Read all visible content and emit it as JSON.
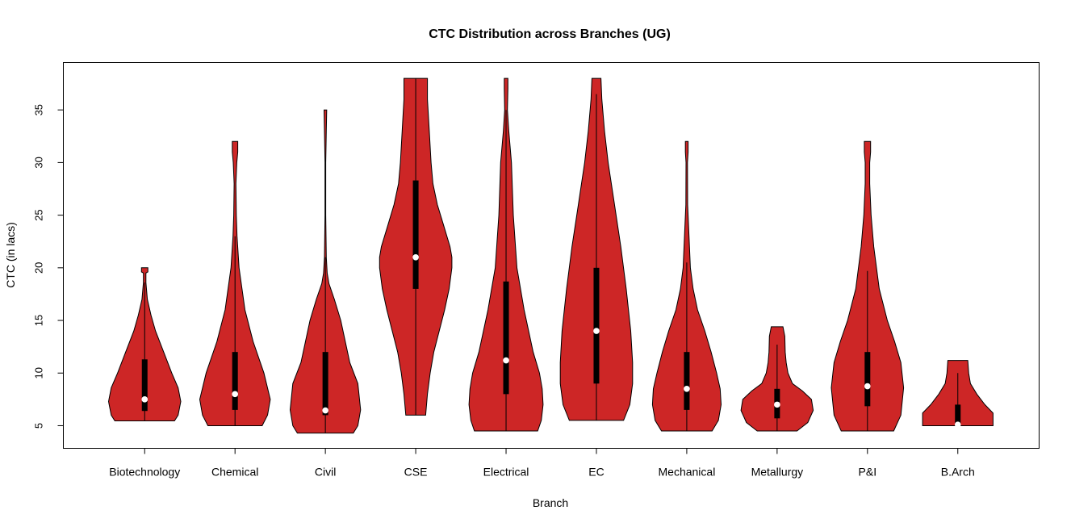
{
  "chart_data": {
    "type": "violin",
    "title": "CTC Distribution across Branches (UG)",
    "xlabel": "Branch",
    "ylabel": "CTC (in lacs)",
    "categories": [
      "Biotechnology",
      "Chemical",
      "Civil",
      "CSE",
      "Electrical",
      "EC",
      "Mechanical",
      "Metallurgy",
      "P&I",
      "B.Arch"
    ],
    "yticks": [
      5,
      10,
      15,
      20,
      25,
      30,
      35
    ],
    "ylim": [
      2.85,
      39.5
    ],
    "xlim": [
      0.1,
      10.9
    ],
    "grid": false,
    "fill_color": "#CD2626",
    "box_color": "#000000",
    "median_color": "#FFFFFF",
    "violins": [
      {
        "min": 5.46,
        "max": 20,
        "q1": 6.4,
        "median": 7.5,
        "q3": 11.3,
        "whisker_low": 5.46,
        "whisker_high": 18.6,
        "density": [
          [
            5.46,
            0.33
          ],
          [
            6,
            0.37
          ],
          [
            7.3,
            0.4
          ],
          [
            8.6,
            0.37
          ],
          [
            10,
            0.3
          ],
          [
            12,
            0.21
          ],
          [
            14,
            0.12
          ],
          [
            15.5,
            0.07
          ],
          [
            17,
            0.03
          ],
          [
            18.6,
            0.014
          ],
          [
            19.5,
            0.014
          ],
          [
            19.6,
            0.035
          ],
          [
            20,
            0.035
          ]
        ]
      },
      {
        "min": 5,
        "max": 32,
        "q1": 6.5,
        "median": 8,
        "q3": 12,
        "whisker_low": 5,
        "whisker_high": 23,
        "density": [
          [
            5,
            0.3
          ],
          [
            6,
            0.36
          ],
          [
            7.5,
            0.39
          ],
          [
            10,
            0.32
          ],
          [
            13,
            0.2
          ],
          [
            16,
            0.11
          ],
          [
            20,
            0.045
          ],
          [
            23,
            0.022
          ],
          [
            25,
            0.014
          ],
          [
            28,
            0.01
          ],
          [
            30,
            0.02
          ],
          [
            31,
            0.03
          ],
          [
            32,
            0.03
          ]
        ]
      },
      {
        "min": 4.3,
        "max": 35,
        "q1": 6.0,
        "median": 6.45,
        "q3": 12,
        "whisker_low": 4.3,
        "whisker_high": 21,
        "density": [
          [
            4.3,
            0.31
          ],
          [
            5,
            0.36
          ],
          [
            6.5,
            0.39
          ],
          [
            9,
            0.36
          ],
          [
            11,
            0.27
          ],
          [
            13,
            0.22
          ],
          [
            15,
            0.17
          ],
          [
            17,
            0.1
          ],
          [
            18.5,
            0.04
          ],
          [
            19.5,
            0.02
          ],
          [
            21,
            0.01
          ],
          [
            25,
            0.004
          ],
          [
            30,
            0.004
          ],
          [
            33,
            0.01
          ],
          [
            35,
            0.015
          ]
        ]
      },
      {
        "min": 6,
        "max": 38,
        "q1": 18,
        "median": 21,
        "q3": 28.3,
        "whisker_low": 6,
        "whisker_high": 38,
        "density": [
          [
            6,
            0.11
          ],
          [
            8,
            0.13
          ],
          [
            10,
            0.16
          ],
          [
            12,
            0.2
          ],
          [
            14,
            0.26
          ],
          [
            16,
            0.32
          ],
          [
            18,
            0.37
          ],
          [
            20,
            0.4
          ],
          [
            21,
            0.4
          ],
          [
            22,
            0.38
          ],
          [
            24,
            0.31
          ],
          [
            26,
            0.24
          ],
          [
            28,
            0.19
          ],
          [
            30,
            0.17
          ],
          [
            33,
            0.15
          ],
          [
            36,
            0.13
          ],
          [
            38,
            0.13
          ]
        ]
      },
      {
        "min": 4.5,
        "max": 38,
        "q1": 8,
        "median": 11.2,
        "q3": 18.7,
        "whisker_low": 4.5,
        "whisker_high": 35,
        "density": [
          [
            4.5,
            0.35
          ],
          [
            5.5,
            0.39
          ],
          [
            7,
            0.41
          ],
          [
            8.5,
            0.4
          ],
          [
            10,
            0.37
          ],
          [
            12,
            0.3
          ],
          [
            14,
            0.25
          ],
          [
            16,
            0.2
          ],
          [
            20,
            0.12
          ],
          [
            25,
            0.08
          ],
          [
            30,
            0.06
          ],
          [
            33,
            0.03
          ],
          [
            35,
            0.015
          ],
          [
            37,
            0.02
          ],
          [
            38,
            0.02
          ]
        ]
      },
      {
        "min": 5.5,
        "max": 38,
        "q1": 9,
        "median": 14,
        "q3": 20,
        "whisker_low": 5.5,
        "whisker_high": 36.5,
        "density": [
          [
            5.5,
            0.3
          ],
          [
            7,
            0.37
          ],
          [
            9,
            0.4
          ],
          [
            11,
            0.4
          ],
          [
            14,
            0.38
          ],
          [
            18,
            0.33
          ],
          [
            22,
            0.27
          ],
          [
            26,
            0.2
          ],
          [
            30,
            0.13
          ],
          [
            33,
            0.09
          ],
          [
            36,
            0.06
          ],
          [
            38,
            0.05
          ]
        ]
      },
      {
        "min": 4.5,
        "max": 32,
        "q1": 6.5,
        "median": 8.5,
        "q3": 12,
        "whisker_low": 4.5,
        "whisker_high": 20.5,
        "density": [
          [
            4.5,
            0.28
          ],
          [
            5.5,
            0.35
          ],
          [
            7,
            0.38
          ],
          [
            8.5,
            0.37
          ],
          [
            10,
            0.33
          ],
          [
            12,
            0.27
          ],
          [
            14,
            0.2
          ],
          [
            16,
            0.12
          ],
          [
            18,
            0.07
          ],
          [
            20,
            0.04
          ],
          [
            23,
            0.025
          ],
          [
            26,
            0.01
          ],
          [
            30,
            0.008
          ],
          [
            31,
            0.015
          ],
          [
            32,
            0.015
          ]
        ]
      },
      {
        "min": 4.5,
        "max": 14.4,
        "q1": 5.7,
        "median": 7.0,
        "q3": 8.5,
        "whisker_low": 4.5,
        "whisker_high": 12.7,
        "density": [
          [
            4.5,
            0.22
          ],
          [
            5.3,
            0.34
          ],
          [
            6.45,
            0.4
          ],
          [
            7.5,
            0.38
          ],
          [
            8.3,
            0.28
          ],
          [
            9,
            0.17
          ],
          [
            10,
            0.12
          ],
          [
            11,
            0.1
          ],
          [
            12,
            0.09
          ],
          [
            13.5,
            0.085
          ],
          [
            14.4,
            0.065
          ]
        ]
      },
      {
        "min": 4.5,
        "max": 32,
        "q1": 6.85,
        "median": 8.75,
        "q3": 12,
        "whisker_low": 4.5,
        "whisker_high": 19.7,
        "density": [
          [
            4.5,
            0.29
          ],
          [
            6,
            0.37
          ],
          [
            8.6,
            0.4
          ],
          [
            11,
            0.37
          ],
          [
            13,
            0.3
          ],
          [
            15,
            0.22
          ],
          [
            18,
            0.13
          ],
          [
            22,
            0.07
          ],
          [
            25,
            0.04
          ],
          [
            28,
            0.025
          ],
          [
            30,
            0.025
          ],
          [
            31,
            0.035
          ],
          [
            32,
            0.035
          ]
        ]
      },
      {
        "min": 5,
        "max": 11.2,
        "q1": 5,
        "median": 5.1,
        "q3": 7,
        "whisker_low": 5,
        "whisker_high": 10,
        "density": [
          [
            5,
            0.39
          ],
          [
            6.2,
            0.39
          ],
          [
            7,
            0.3
          ],
          [
            8,
            0.21
          ],
          [
            9,
            0.14
          ],
          [
            10,
            0.12
          ],
          [
            11.2,
            0.11
          ]
        ]
      }
    ]
  }
}
